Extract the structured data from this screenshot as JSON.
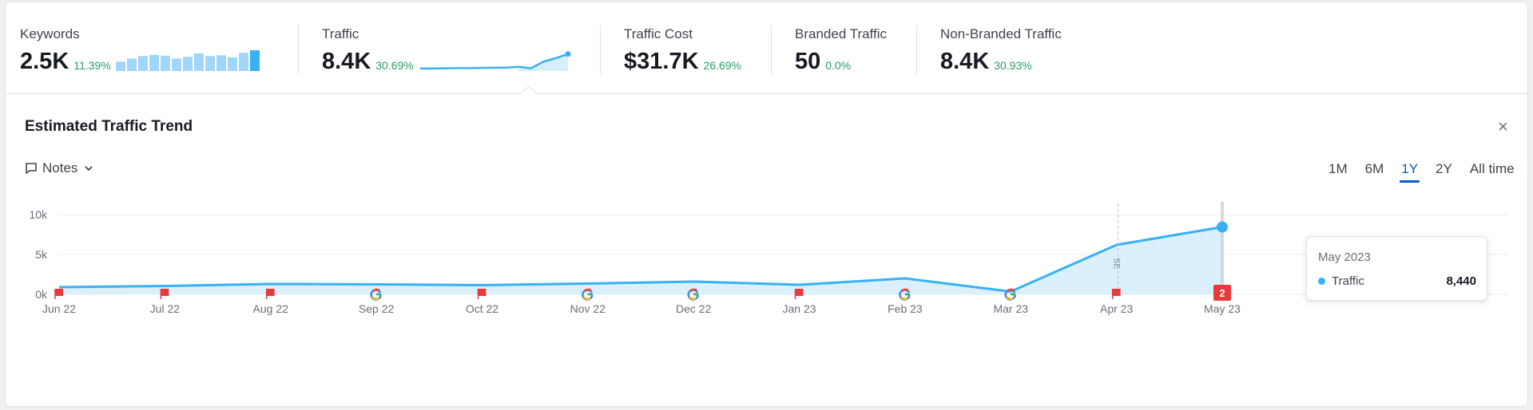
{
  "metrics": [
    {
      "label": "Keywords",
      "value": "2.5K",
      "change": "11.39%"
    },
    {
      "label": "Traffic",
      "value": "8.4K",
      "change": "30.69%"
    },
    {
      "label": "Traffic Cost",
      "value": "$31.7K",
      "change": "26.69%"
    },
    {
      "label": "Branded Traffic",
      "value": "50",
      "change": "0.0%"
    },
    {
      "label": "Non-Branded Traffic",
      "value": "8.4K",
      "change": "30.93%"
    }
  ],
  "keywords_spark": [
    0.45,
    0.6,
    0.72,
    0.78,
    0.74,
    0.6,
    0.68,
    0.85,
    0.72,
    0.76,
    0.66,
    0.88,
    1.0
  ],
  "traffic_spark": [
    0.12,
    0.12,
    0.13,
    0.14,
    0.14,
    0.15,
    0.16,
    0.16,
    0.2,
    0.13,
    0.45,
    0.62,
    0.82
  ],
  "panel": {
    "title": "Estimated Traffic Trend",
    "close": "×"
  },
  "notes_label": "Notes",
  "periods": [
    "1M",
    "6M",
    "1Y",
    "2Y",
    "All time"
  ],
  "active_period": "1Y",
  "colors": {
    "accent": "#38b0f4",
    "area": "#d6effd",
    "positive": "#2c9a68",
    "flag": "#e83a3a",
    "active_tab": "#0b59c6"
  },
  "tooltip": {
    "date": "May 2023",
    "series": "Traffic",
    "value": "8,440"
  },
  "serp_marker": "SE",
  "note_badge": "2",
  "chart_data": {
    "type": "area",
    "x": [
      "Jun 22",
      "Jul 22",
      "Aug 22",
      "Sep 22",
      "Oct 22",
      "Nov 22",
      "Dec 22",
      "Jan 23",
      "Feb 23",
      "Mar 23",
      "Apr 23",
      "May 23"
    ],
    "series": [
      {
        "name": "Traffic",
        "values": [
          900,
          1050,
          1300,
          1250,
          1150,
          1350,
          1600,
          1200,
          2000,
          350,
          6200,
          8440
        ]
      }
    ],
    "y_ticks": [
      "0k",
      "5k",
      "10k"
    ],
    "ylim": [
      0,
      12500
    ],
    "grid": true,
    "markers": [
      "flag",
      "flag",
      "flag",
      "google",
      "flag",
      "google",
      "google",
      "flag",
      "google",
      "google",
      "flag",
      "badge"
    ]
  }
}
